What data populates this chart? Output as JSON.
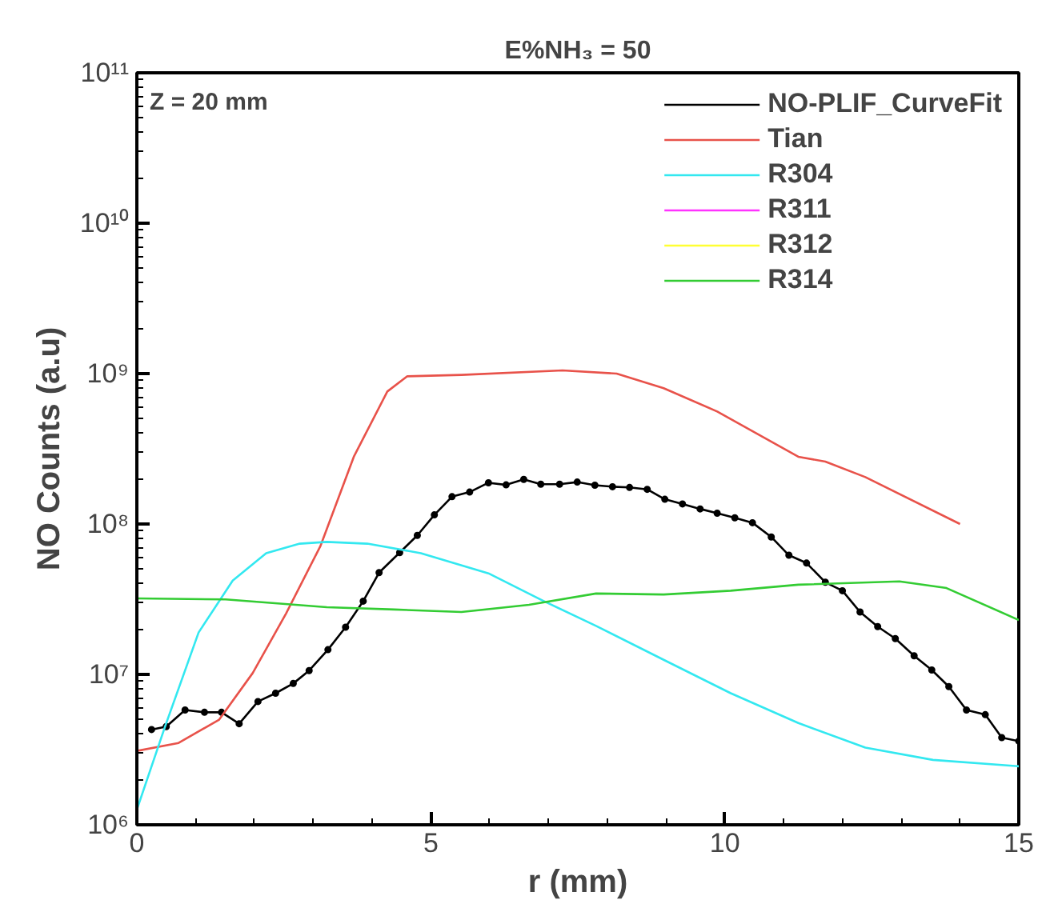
{
  "chart_data": {
    "type": "line",
    "title": "E%NH₃ = 50",
    "xlabel": "r (mm)",
    "ylabel": "NO Counts (a.u)",
    "annotations": [
      "Z = 20 mm"
    ],
    "log": "y",
    "grid": false,
    "legend": "top right",
    "xlim": [
      0,
      15
    ],
    "xticks": [
      0,
      5,
      10,
      15
    ],
    "ylim": [
      1000000,
      100000000000
    ],
    "yticks": [
      {
        "value": 1000000,
        "label": "10⁶"
      },
      {
        "value": 10000000,
        "label": "10⁷"
      },
      {
        "value": 100000000,
        "label": "10⁸"
      },
      {
        "value": 1000000000,
        "label": "10⁹"
      },
      {
        "value": 10000000000,
        "label": "10¹⁰"
      },
      {
        "value": 100000000000,
        "label": "10¹¹"
      }
    ],
    "series": [
      {
        "name": "NO-PLIF_CurveFit",
        "color": "#000000",
        "marker": "circle",
        "x": [
          0.25,
          0.5,
          0.82,
          1.15,
          1.44,
          1.74,
          2.06,
          2.36,
          2.66,
          2.93,
          3.25,
          3.55,
          3.85,
          4.12,
          4.47,
          4.77,
          5.06,
          5.36,
          5.66,
          5.98,
          6.28,
          6.58,
          6.87,
          7.19,
          7.49,
          7.79,
          8.09,
          8.38,
          8.68,
          8.98,
          9.28,
          9.58,
          9.87,
          10.17,
          10.47,
          10.79,
          11.09,
          11.39,
          11.71,
          12.0,
          12.3,
          12.6,
          12.9,
          13.22,
          13.52,
          13.81,
          14.11,
          14.43,
          14.71,
          15.0
        ],
        "values": [
          4300000,
          4500000,
          5800000,
          5600000,
          5600000,
          4700000,
          6600000,
          7500000,
          8700000,
          10600000,
          14600000,
          20600000,
          30700000,
          47500000,
          64500000,
          84000000,
          115000000,
          152000000,
          163000000,
          188000000,
          182000000,
          198000000,
          184000000,
          184000000,
          190000000,
          181000000,
          177000000,
          175000000,
          170000000,
          146000000,
          136000000,
          126000000,
          118000000,
          110000000,
          102000000,
          82000000,
          62000000,
          55000000,
          41000000,
          36000000,
          26000000,
          20800000,
          17300000,
          13300000,
          10700000,
          8300000,
          5800000,
          5400000,
          3800000,
          3600000
        ]
      },
      {
        "name": "Tian",
        "color": "#e8524a",
        "marker": "none",
        "x": [
          0,
          0.71,
          1.4,
          1.97,
          2.54,
          3.12,
          3.69,
          4.26,
          4.6,
          5.52,
          7.24,
          8.16,
          8.96,
          9.87,
          11.25,
          11.71,
          12.39,
          14.0
        ],
        "values": [
          3100000,
          3500000,
          5000000,
          10200000,
          25500000,
          71000000,
          280000000,
          760000000,
          960000000,
          980000000,
          1050000000,
          1000000000,
          800000000,
          560000000,
          280000000,
          260000000,
          205000000,
          100000000
        ]
      },
      {
        "name": "R304",
        "color": "#33e8f0",
        "marker": "none",
        "x": [
          0,
          0.48,
          1.05,
          1.63,
          2.2,
          2.77,
          3.23,
          3.92,
          4.83,
          5.98,
          6.9,
          7.81,
          8.96,
          10.1,
          11.25,
          12.39,
          13.54,
          15.0
        ],
        "values": [
          1260000,
          4500000,
          19000000,
          42000000,
          64000000,
          74000000,
          76000000,
          74000000,
          64000000,
          47000000,
          31000000,
          21000000,
          12500000,
          7500000,
          4750000,
          3260000,
          2700000,
          2450000
        ]
      },
      {
        "name": "R311",
        "color": "#ff33ff",
        "marker": "none",
        "values": [
          null
        ]
      },
      {
        "name": "R312",
        "color": "#ffff33",
        "marker": "none",
        "values": [
          null
        ]
      },
      {
        "name": "R314",
        "color": "#33cc33",
        "marker": "none",
        "x": [
          0,
          1.51,
          3.23,
          4.38,
          5.52,
          6.67,
          7.81,
          8.96,
          10.1,
          11.25,
          12.97,
          13.77,
          15.0
        ],
        "values": [
          32000000,
          31500000,
          28000000,
          27000000,
          26000000,
          29000000,
          34500000,
          34000000,
          36000000,
          39500000,
          41500000,
          37500000,
          23000000
        ]
      }
    ]
  }
}
